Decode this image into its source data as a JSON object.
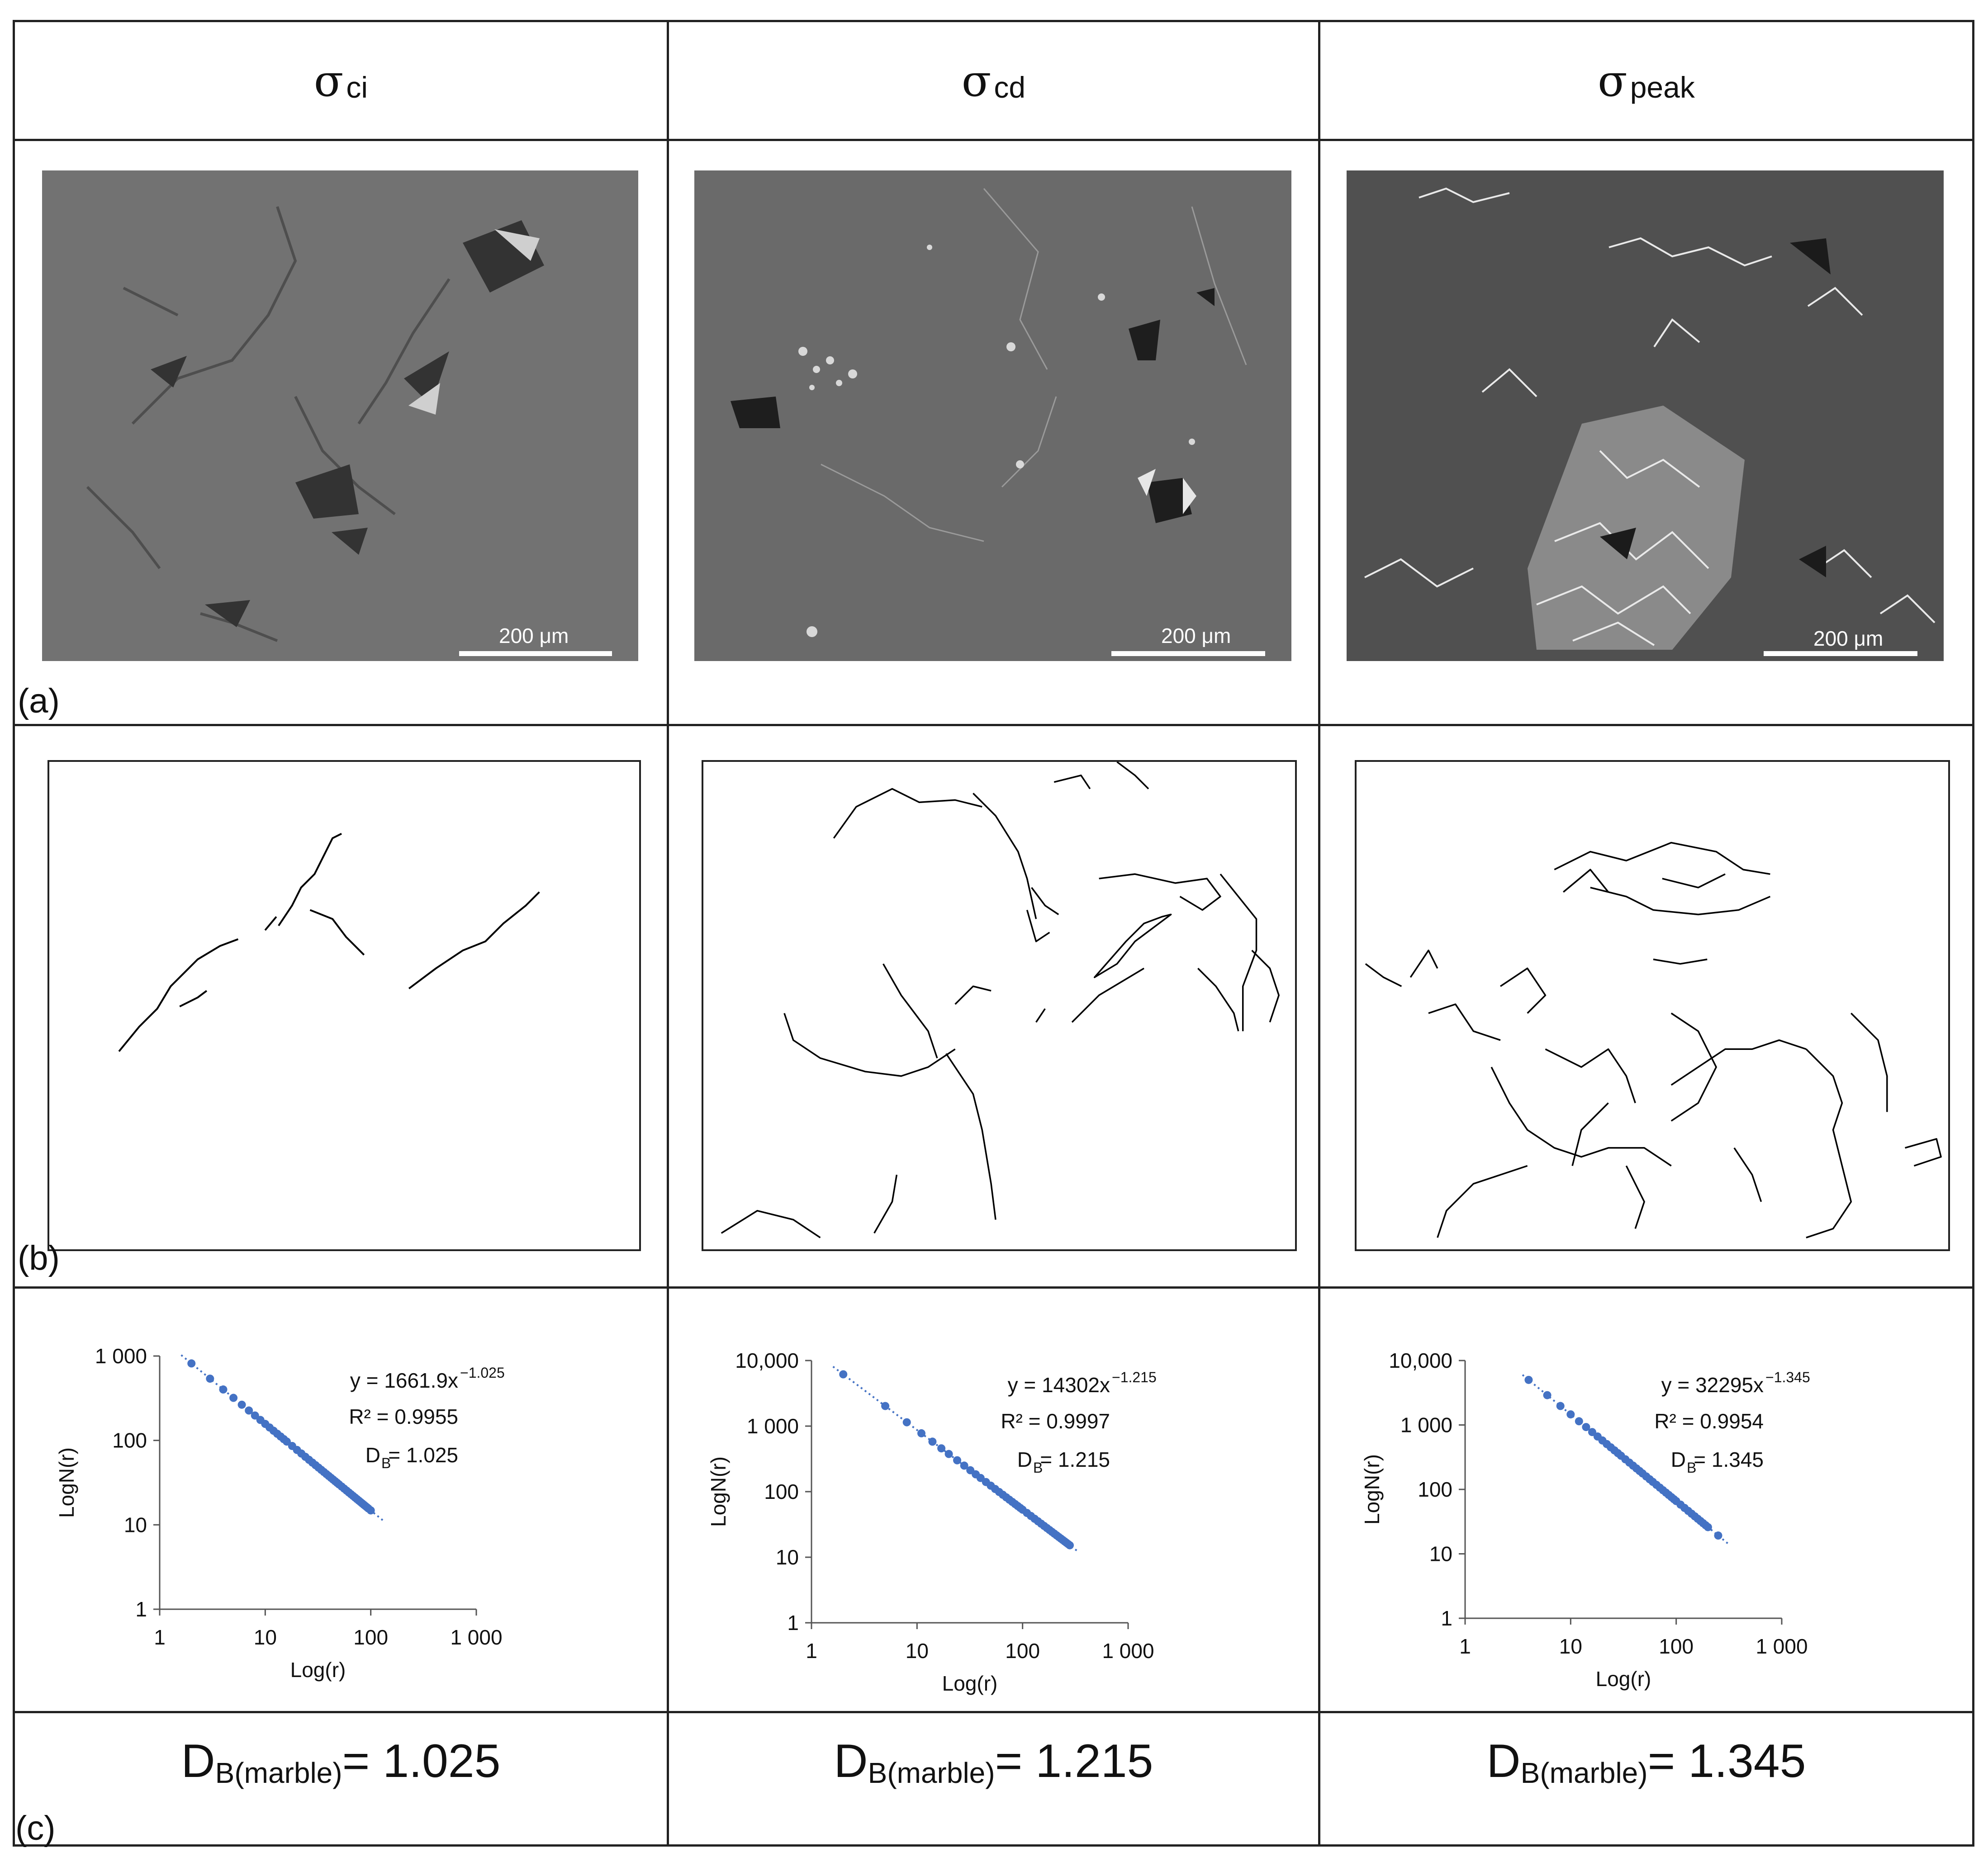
{
  "columns": [
    {
      "sigma": "σ",
      "subscript": "ci",
      "scale_label": "200 μm",
      "db_label": "D",
      "db_sub": "B(marble)",
      "db_value": " = 1.025"
    },
    {
      "sigma": "σ",
      "subscript": "cd",
      "scale_label": "200 μm",
      "db_label": "D",
      "db_sub": "B(marble)",
      "db_value": " = 1.215"
    },
    {
      "sigma": "σ",
      "subscript": "peak",
      "scale_label": "200 μm",
      "db_label": "D",
      "db_sub": "B(marble)",
      "db_value": " = 1.345"
    }
  ],
  "panel_labels": {
    "a": "(a)",
    "b": "(b)",
    "c": "(c)"
  },
  "chart_data": [
    {
      "type": "scatter",
      "xlabel": "Log(r)",
      "ylabel": "LogN(r)",
      "x_scale": "log",
      "y_scale": "log",
      "xlim": [
        1,
        1000
      ],
      "ylim": [
        1,
        1000
      ],
      "xticks": [
        "1",
        "10",
        "100",
        "1 000"
      ],
      "yticks": [
        "1",
        "10",
        "100",
        "1 000"
      ],
      "equation": "y = 1661.9x",
      "exponent": "−1.025",
      "r2": "R² = 0.9955",
      "db_text_main": "D",
      "db_text_sub": "B",
      "db_text_value": "= 1.025",
      "fit": {
        "a": 1661.9,
        "b": -1.025,
        "xrange": [
          1.6,
          130
        ]
      },
      "x": [
        2,
        3,
        4,
        5,
        6,
        7,
        8,
        9,
        10,
        11,
        12,
        13,
        14,
        15,
        16,
        18,
        20,
        22,
        24,
        26,
        28,
        30,
        32,
        34,
        36,
        38,
        40,
        42,
        44,
        46,
        48,
        50,
        53,
        56,
        59,
        62,
        65,
        68,
        71,
        74,
        77,
        80,
        83,
        86,
        89,
        92,
        95,
        100
      ],
      "color": "#4472c4"
    },
    {
      "type": "scatter",
      "xlabel": "Log(r)",
      "ylabel": "LogN(r)",
      "x_scale": "log",
      "y_scale": "log",
      "xlim": [
        1,
        1000
      ],
      "ylim": [
        1,
        10000
      ],
      "xticks": [
        "1",
        "10",
        "100",
        "1 000"
      ],
      "yticks": [
        "1",
        "10",
        "100",
        "1 000",
        "10,000"
      ],
      "equation": "y = 14302x",
      "exponent": "−1.215",
      "r2": "R² = 0.9997",
      "db_text_main": "D",
      "db_text_sub": "B",
      "db_text_value": "= 1.215",
      "fit": {
        "a": 14302,
        "b": -1.215,
        "xrange": [
          1.6,
          330
        ]
      },
      "x": [
        2,
        5,
        8,
        11,
        14,
        17,
        20,
        24,
        28,
        32,
        36,
        40,
        45,
        50,
        55,
        60,
        65,
        70,
        75,
        80,
        85,
        90,
        95,
        100,
        110,
        120,
        130,
        140,
        150,
        160,
        170,
        180,
        190,
        200,
        210,
        220,
        230,
        240,
        250,
        260,
        270,
        280
      ],
      "color": "#4472c4"
    },
    {
      "type": "scatter",
      "xlabel": "Log(r)",
      "ylabel": "LogN(r)",
      "x_scale": "log",
      "y_scale": "log",
      "xlim": [
        1,
        1000
      ],
      "ylim": [
        1,
        10000
      ],
      "xticks": [
        "1",
        "10",
        "100",
        "1 000"
      ],
      "yticks": [
        "1",
        "10",
        "100",
        "1 000",
        "10,000"
      ],
      "equation": "y = 32295x",
      "exponent": "−1.345",
      "r2": "R² = 0.9954",
      "db_text_main": "D",
      "db_text_sub": "B",
      "db_text_value": "= 1.345",
      "fit": {
        "a": 32295,
        "b": -1.345,
        "xrange": [
          3.5,
          310
        ]
      },
      "x": [
        4,
        6,
        8,
        10,
        12,
        14,
        16,
        18,
        20,
        22,
        24,
        26,
        28,
        30,
        33,
        36,
        39,
        42,
        45,
        48,
        52,
        56,
        60,
        65,
        70,
        75,
        80,
        85,
        90,
        95,
        100,
        110,
        120,
        130,
        140,
        150,
        160,
        170,
        180,
        190,
        200,
        250
      ],
      "color": "#4472c4"
    }
  ]
}
